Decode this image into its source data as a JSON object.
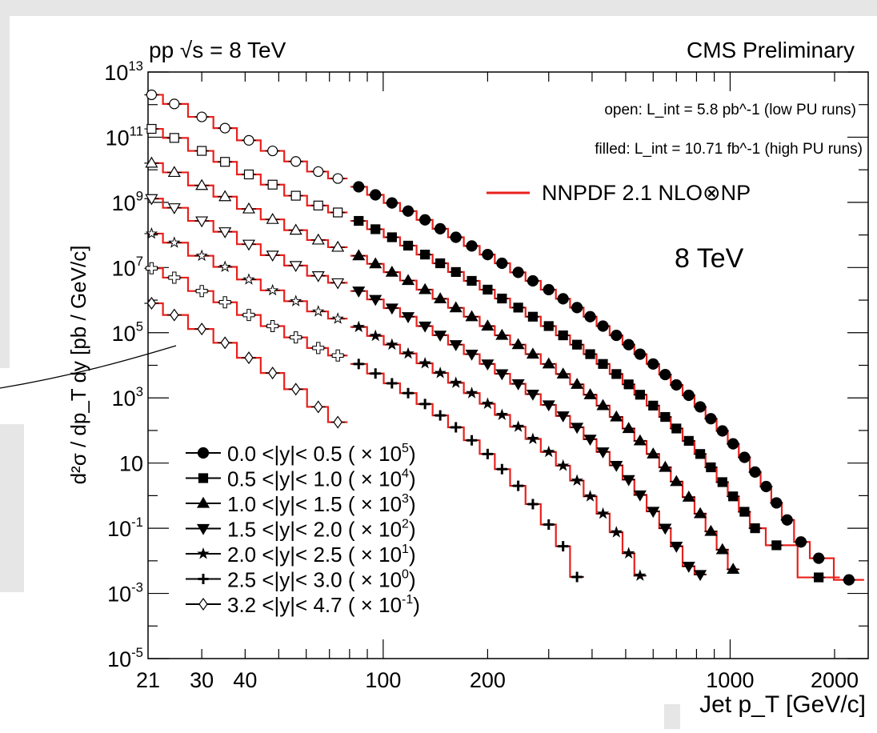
{
  "colors": {
    "theory": "#e8201c",
    "data": "#000000",
    "background_panel": "#e6e6e6"
  },
  "chart_data": {
    "type": "scatter",
    "log_x": true,
    "log_y": true,
    "xlim": [
      21,
      2500
    ],
    "ylim": [
      1e-05,
      10000000000000.0
    ],
    "grid": false,
    "legend_location": "bottom-left",
    "top_left_label": "pp √s = 8 TeV",
    "top_right_label": "CMS Preliminary",
    "annotations": {
      "open": "open: L_int = 5.8 pb^-1 (low PU runs)",
      "filled": "filled: L_int = 10.71 fb^-1 (high PU runs)",
      "theory": "NNPDF 2.1 NLO⊗NP",
      "energy": "8 TeV"
    },
    "xlabel": "Jet p_T [GeV/c]",
    "ylabel": "d²σ / dp_T dy [pb / GeV/c]",
    "x_ticks": [
      "21",
      "30",
      "40",
      "100",
      "200",
      "1000",
      "2000"
    ],
    "y_ticks": [
      "10^-5",
      "10^-3",
      "10^-1",
      "10",
      "10^3",
      "10^5",
      "10^7",
      "10^9",
      "10^11",
      "10^13"
    ],
    "series": [
      {
        "name": "0.0 <|y|< 0.5 ( × 10^5)",
        "marker": "circle",
        "open_points": [
          [
            21.5,
            2000000000000.0
          ],
          [
            25,
            1050000000000.0
          ],
          [
            30,
            420000000000.0
          ],
          [
            35,
            190000000000.0
          ],
          [
            41,
            80000000000.0
          ],
          [
            48,
            38000000000.0
          ],
          [
            56,
            18000000000.0
          ],
          [
            65,
            8800000000.0
          ],
          [
            74,
            5400000000.0
          ]
        ],
        "filled_points": [
          [
            85,
            3000000000.0
          ],
          [
            95,
            1700000000.0
          ],
          [
            106,
            960000000.0
          ],
          [
            118,
            540000000.0
          ],
          [
            132,
            290000000.0
          ],
          [
            146,
            155000000.0
          ],
          [
            162,
            85000000.0
          ],
          [
            180,
            46000000.0
          ],
          [
            200,
            25000000.0
          ],
          [
            220,
            13500000.0
          ],
          [
            245,
            7100000.0
          ],
          [
            270,
            3900000.0
          ],
          [
            300,
            2100000.0
          ],
          [
            330,
            1100000.0
          ],
          [
            362,
            590000.0
          ],
          [
            395,
            310000.0
          ],
          [
            430,
            160000.0
          ],
          [
            470,
            83000.0
          ],
          [
            510,
            43000.0
          ],
          [
            550,
            22000.0
          ],
          [
            600,
            11000.0
          ],
          [
            650,
            5200.0
          ],
          [
            700,
            2500.0
          ],
          [
            760,
            1200.0
          ],
          [
            820,
            530.0
          ],
          [
            880,
            230.0
          ],
          [
            950,
            97
          ],
          [
            1020,
            39
          ],
          [
            1100,
            15
          ],
          [
            1180,
            5.3
          ],
          [
            1270,
            1.9
          ],
          [
            1360,
            0.6
          ],
          [
            1460,
            0.18
          ],
          [
            1600,
            0.038
          ],
          [
            1800,
            0.012
          ],
          [
            2200,
            0.0026
          ]
        ]
      },
      {
        "name": "0.5 <|y|< 1.0 ( × 10^4)",
        "marker": "square",
        "open_points": [
          [
            21.5,
            180000000000.0
          ],
          [
            25,
            95000000000.0
          ],
          [
            30,
            38000000000.0
          ],
          [
            35,
            17500000000.0
          ],
          [
            41,
            7200000000.0
          ],
          [
            48,
            3500000000.0
          ],
          [
            56,
            1600000000.0
          ],
          [
            65,
            800000000.0
          ],
          [
            74,
            490000000.0
          ]
        ],
        "filled_points": [
          [
            85,
            270000000.0
          ],
          [
            95,
            150000000.0
          ],
          [
            106,
            85000000.0
          ],
          [
            118,
            47000000.0
          ],
          [
            132,
            25000000.0
          ],
          [
            146,
            13500000.0
          ],
          [
            162,
            7300000.0
          ],
          [
            180,
            3900000.0
          ],
          [
            200,
            2100000.0
          ],
          [
            220,
            1120000.0
          ],
          [
            245,
            590000.0
          ],
          [
            270,
            310000.0
          ],
          [
            300,
            160000.0
          ],
          [
            330,
            83000.0
          ],
          [
            362,
            43000.0
          ],
          [
            395,
            22000.0
          ],
          [
            430,
            11000.0
          ],
          [
            470,
            5400.0
          ],
          [
            510,
            2600.0
          ],
          [
            550,
            1250.0
          ],
          [
            600,
            580.0
          ],
          [
            650,
            260.0
          ],
          [
            700,
            115.0
          ],
          [
            760,
            48
          ],
          [
            820,
            19
          ],
          [
            880,
            7.4
          ],
          [
            950,
            2.6
          ],
          [
            1020,
            0.95
          ],
          [
            1100,
            0.32
          ],
          [
            1180,
            0.1
          ],
          [
            1360,
            0.03
          ],
          [
            1800,
            0.0031
          ]
        ]
      },
      {
        "name": "1.0 <|y|< 1.5 ( × 10^3)",
        "marker": "triangle-up",
        "open_points": [
          [
            21.5,
            16000000000.0
          ],
          [
            25,
            8300000000.0
          ],
          [
            30,
            3300000000.0
          ],
          [
            35,
            1500000000.0
          ],
          [
            41,
            630000000.0
          ],
          [
            48,
            300000000.0
          ],
          [
            56,
            140000000.0
          ],
          [
            65,
            70000000.0
          ],
          [
            74,
            42000000.0
          ]
        ],
        "filled_points": [
          [
            85,
            23000000.0
          ],
          [
            95,
            13000000.0
          ],
          [
            106,
            7200000.0
          ],
          [
            118,
            4000000.0
          ],
          [
            132,
            2100000.0
          ],
          [
            146,
            1100000.0
          ],
          [
            162,
            580000.0
          ],
          [
            180,
            310000.0
          ],
          [
            200,
            160000.0
          ],
          [
            220,
            83000.0
          ],
          [
            245,
            43000.0
          ],
          [
            270,
            22000.0
          ],
          [
            300,
            11000.0
          ],
          [
            330,
            5400.0
          ],
          [
            362,
            2600.0
          ],
          [
            395,
            1250.0
          ],
          [
            430,
            580.0
          ],
          [
            470,
            260.0
          ],
          [
            510,
            115.0
          ],
          [
            550,
            48
          ],
          [
            600,
            19
          ],
          [
            650,
            7.4
          ],
          [
            700,
            2.7
          ],
          [
            760,
            0.9
          ],
          [
            820,
            0.28
          ],
          [
            880,
            0.08
          ],
          [
            950,
            0.022
          ],
          [
            1020,
            0.0055
          ]
        ]
      },
      {
        "name": "1.5 <|y|< 2.0 ( × 10^2)",
        "marker": "triangle-down",
        "open_points": [
          [
            21.5,
            1300000000.0
          ],
          [
            25,
            680000000.0
          ],
          [
            30,
            270000000.0
          ],
          [
            35,
            125000000.0
          ],
          [
            41,
            52000000.0
          ],
          [
            48,
            24000000.0
          ],
          [
            56,
            11500000.0
          ],
          [
            65,
            5600000.0
          ],
          [
            74,
            3400000.0
          ]
        ],
        "filled_points": [
          [
            85,
            1900000.0
          ],
          [
            95,
            1050000.0
          ],
          [
            106,
            570000.0
          ],
          [
            118,
            310000.0
          ],
          [
            132,
            160000.0
          ],
          [
            146,
            84000.0
          ],
          [
            162,
            43000.0
          ],
          [
            180,
            22000.0
          ],
          [
            200,
            11000.0
          ],
          [
            220,
            5500.0
          ],
          [
            245,
            2700.0
          ],
          [
            270,
            1300.0
          ],
          [
            300,
            610.0
          ],
          [
            330,
            280.0
          ],
          [
            362,
            125.0
          ],
          [
            395,
            54
          ],
          [
            430,
            22
          ],
          [
            470,
            8.5
          ],
          [
            510,
            3.1
          ],
          [
            550,
            1.05
          ],
          [
            600,
            0.33
          ],
          [
            650,
            0.1
          ],
          [
            700,
            0.028
          ],
          [
            760,
            0.0068
          ],
          [
            820,
            0.0038
          ]
        ]
      },
      {
        "name": "2.0 <|y|< 2.5 ( × 10^1)",
        "marker": "star",
        "open_points": [
          [
            21.5,
            110000000.0
          ],
          [
            25,
            58000000.0
          ],
          [
            30,
            23000000.0
          ],
          [
            35,
            10500000.0
          ],
          [
            41,
            4300000.0
          ],
          [
            48,
            2000000.0
          ],
          [
            56,
            930000.0
          ],
          [
            65,
            450000.0
          ],
          [
            74,
            270000.0
          ]
        ],
        "filled_points": [
          [
            85,
            150000.0
          ],
          [
            95,
            80000.0
          ],
          [
            106,
            43000.0
          ],
          [
            118,
            23000.0
          ],
          [
            132,
            11500.0
          ],
          [
            146,
            5800.0
          ],
          [
            162,
            2900.0
          ],
          [
            180,
            1400.0
          ],
          [
            200,
            660.0
          ],
          [
            220,
            300.0
          ],
          [
            245,
            130.0
          ],
          [
            270,
            55
          ],
          [
            300,
            22
          ],
          [
            330,
            8.3
          ],
          [
            362,
            2.9
          ],
          [
            395,
            0.95
          ],
          [
            430,
            0.28
          ],
          [
            470,
            0.075
          ],
          [
            510,
            0.017
          ],
          [
            550,
            0.0035
          ]
        ]
      },
      {
        "name": "2.5 <|y|< 3.0 ( × 10^0)",
        "marker": "cross",
        "open_points": [
          [
            21.5,
            9500000.0
          ],
          [
            25,
            4900000.0
          ],
          [
            30,
            1900000.0
          ],
          [
            35,
            860000.0
          ],
          [
            41,
            350000.0
          ],
          [
            48,
            160000.0
          ],
          [
            56,
            72000.0
          ],
          [
            65,
            34000.0
          ],
          [
            74,
            20000.0
          ]
        ],
        "filled_points": [
          [
            85,
            11000.0
          ],
          [
            95,
            5600.0
          ],
          [
            106,
            2800.0
          ],
          [
            118,
            1400.0
          ],
          [
            132,
            650.0
          ],
          [
            146,
            290.0
          ],
          [
            162,
            125.0
          ],
          [
            180,
            50
          ],
          [
            200,
            19
          ],
          [
            220,
            6.5
          ],
          [
            245,
            2.0
          ],
          [
            270,
            0.55
          ],
          [
            300,
            0.13
          ],
          [
            330,
            0.028
          ],
          [
            362,
            0.0032
          ]
        ]
      },
      {
        "name": "3.2 <|y|< 4.7 ( × 10^-1)",
        "marker": "diamond",
        "open_points": [
          [
            21.5,
            800000.0
          ],
          [
            25,
            350000.0
          ],
          [
            30,
            130000.0
          ],
          [
            35,
            49000.0
          ],
          [
            41,
            17000.0
          ],
          [
            48,
            5800.0
          ],
          [
            56,
            1850.0
          ],
          [
            65,
            530.0
          ],
          [
            74,
            180.0
          ]
        ],
        "filled_points": []
      }
    ]
  }
}
